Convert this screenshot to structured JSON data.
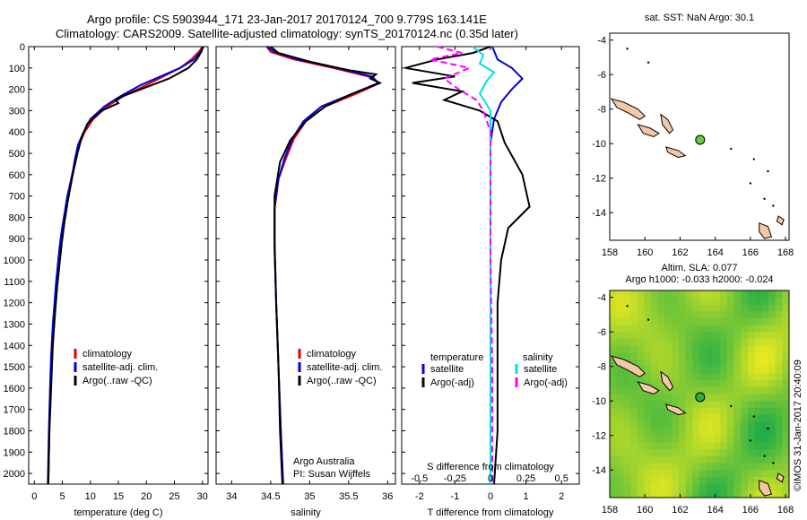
{
  "header": {
    "line1": "Argo profile: CS 5903944_171 23-Jan-2017 20170124_700 9.779S 163.141E",
    "line2": "Climatology: CARS2009. Satellite-adjusted climatology: synTS_20170124.nc (0.35d later)"
  },
  "credit": "©IMOS 31-Jan-2017 20:40:09",
  "depth_ticks": [
    "0",
    "100",
    "200",
    "300",
    "400",
    "500",
    "600",
    "700",
    "800",
    "900",
    "1000",
    "1100",
    "1200",
    "1300",
    "1400",
    "1500",
    "1600",
    "1700",
    "1800",
    "1900",
    "2000"
  ],
  "chart_data": [
    {
      "type": "line",
      "name": "temperature",
      "xlabel": "temperature (deg C)",
      "ylabel": "",
      "xlim": [
        -1,
        31
      ],
      "ylim": [
        2050,
        0
      ],
      "xticks": [
        "0",
        "5",
        "10",
        "15",
        "20",
        "25",
        "30"
      ],
      "legend": [
        "climatology",
        "satellite-adj. clim.",
        "Argo(..raw -QC)"
      ],
      "series": [
        {
          "name": "climatology",
          "color": "#e00000",
          "x": [
            30,
            29.5,
            28,
            26,
            23,
            20,
            16,
            13,
            10.5,
            9,
            8,
            7.5,
            7,
            6.5,
            6,
            5.5,
            5,
            4.6,
            4.3,
            4,
            3.7,
            3.4,
            3.1,
            2.9,
            2.7,
            2.5
          ],
          "y": [
            0,
            20,
            60,
            100,
            140,
            180,
            230,
            280,
            340,
            400,
            460,
            520,
            580,
            640,
            700,
            780,
            860,
            940,
            1020,
            1100,
            1200,
            1300,
            1450,
            1600,
            1800,
            2050
          ]
        },
        {
          "name": "satellite-adj. clim.",
          "color": "#0000e0",
          "x": [
            30.2,
            29.8,
            28.5,
            26,
            22.5,
            19,
            15.5,
            12.5,
            10,
            8.8,
            7.8,
            7.3,
            6.9,
            6.4,
            5.9,
            5.4,
            4.9,
            4.5,
            4.2,
            3.9,
            3.6,
            3.3,
            3.0,
            2.8,
            2.6,
            2.4
          ],
          "y": [
            0,
            20,
            60,
            100,
            140,
            180,
            230,
            280,
            340,
            400,
            460,
            520,
            580,
            640,
            700,
            780,
            860,
            940,
            1020,
            1100,
            1200,
            1300,
            1450,
            1600,
            1800,
            2050
          ]
        },
        {
          "name": "Argo(..raw -QC)",
          "color": "#000000",
          "x": [
            30,
            29.9,
            29,
            27.5,
            24,
            20,
            16,
            14.5,
            15,
            12,
            9.5,
            8.5,
            7.7,
            7,
            6.5,
            6,
            5.4,
            4.9,
            4.5,
            4.1,
            3.7,
            3.3,
            3,
            2.7,
            2.5
          ],
          "y": [
            0,
            20,
            60,
            100,
            150,
            190,
            230,
            250,
            265,
            300,
            360,
            420,
            500,
            580,
            650,
            720,
            820,
            920,
            1020,
            1120,
            1250,
            1400,
            1600,
            1800,
            2050
          ]
        }
      ]
    },
    {
      "type": "line",
      "name": "salinity",
      "xlabel": "salinity",
      "ylabel": "",
      "xlim": [
        33.8,
        36.1
      ],
      "ylim": [
        2050,
        0
      ],
      "xticks": [
        "34",
        "34.5",
        "35",
        "35.5",
        "36"
      ],
      "legend": [
        "climatology",
        "satellite-adj. clim.",
        "Argo(..raw -QC)"
      ],
      "annotation": [
        "Argo Australia",
        "PI: Susan Wijffels"
      ],
      "series": [
        {
          "name": "climatology",
          "color": "#e00000",
          "x": [
            34.45,
            34.5,
            34.8,
            35.3,
            35.75,
            35.9,
            35.6,
            35.2,
            34.95,
            34.8,
            34.7,
            34.6,
            34.55,
            34.55,
            34.57,
            34.6,
            34.63,
            34.66
          ],
          "y": [
            0,
            25,
            60,
            100,
            140,
            170,
            220,
            280,
            350,
            430,
            520,
            620,
            760,
            950,
            1200,
            1500,
            1800,
            2050
          ]
        },
        {
          "name": "satellite-adj. clim.",
          "color": "#0000e0",
          "x": [
            34.45,
            34.55,
            34.85,
            35.35,
            35.8,
            35.88,
            35.55,
            35.15,
            34.92,
            34.78,
            34.68,
            34.6,
            34.55,
            34.55,
            34.57,
            34.6,
            34.63,
            34.66
          ],
          "y": [
            0,
            25,
            60,
            100,
            140,
            170,
            220,
            280,
            350,
            430,
            520,
            620,
            760,
            950,
            1200,
            1500,
            1800,
            2050
          ]
        },
        {
          "name": "Argo(..raw -QC)",
          "color": "#000000",
          "x": [
            34.5,
            34.6,
            35,
            35.5,
            35.85,
            35.78,
            35.9,
            35.55,
            35.2,
            34.95,
            34.75,
            34.62,
            34.55,
            34.55,
            34.57,
            34.6,
            34.62,
            34.65
          ],
          "y": [
            0,
            30,
            70,
            110,
            130,
            150,
            170,
            220,
            280,
            350,
            440,
            540,
            700,
            900,
            1200,
            1500,
            1800,
            2050
          ]
        }
      ]
    },
    {
      "type": "line",
      "name": "difference",
      "xlabel": "T difference from climatology",
      "xlabel2": "S difference from climatology",
      "ylabel": "",
      "xlim": [
        -2.5,
        2.5
      ],
      "ylim": [
        2050,
        0
      ],
      "xticks": [
        "-2",
        "-1",
        "0",
        "1",
        "2"
      ],
      "xticks2": [
        "-0.5",
        "-0.25",
        "0",
        "0.25",
        "0.5"
      ],
      "legend_titles": [
        "temperature",
        "salinity"
      ],
      "legend": [
        "satellite",
        "Argo(-adj)",
        "satellite",
        "Argo(-adj)"
      ],
      "series": [
        {
          "name": "temperature satellite",
          "color": "#0000e0",
          "x": [
            0.05,
            0.2,
            0.6,
            0.9,
            0.6,
            0.3,
            0.1,
            0,
            0,
            0,
            0,
            0
          ],
          "y": [
            0,
            60,
            100,
            150,
            200,
            260,
            340,
            450,
            700,
            1000,
            1500,
            2050
          ]
        },
        {
          "name": "temperature Argo(-adj)",
          "color": "#000000",
          "x": [
            0,
            -0.5,
            -1.5,
            -2.4,
            -1,
            -2.2,
            -0.8,
            -1.3,
            -0.3,
            0.2,
            0.4,
            0.9,
            1.1,
            0.5,
            0.3,
            0.2,
            0.2,
            0.2,
            0.1
          ],
          "y": [
            0,
            30,
            60,
            100,
            140,
            170,
            210,
            250,
            300,
            350,
            450,
            600,
            750,
            850,
            1000,
            1200,
            1500,
            1800,
            2050
          ]
        },
        {
          "name": "salinity satellite",
          "color": "#00e0e0",
          "x": [
            -0.5,
            -0.2,
            -0.3,
            0.1,
            -0.1,
            -0.3,
            0,
            0,
            0,
            0,
            0,
            0
          ],
          "y": [
            0,
            40,
            80,
            120,
            160,
            220,
            300,
            450,
            700,
            1000,
            1500,
            2050
          ]
        },
        {
          "name": "salinity Argo(-adj)",
          "color": "#ff00ff",
          "x": [
            -1.5,
            -0.8,
            -1.7,
            -0.6,
            -1.3,
            -0.9,
            -0.4,
            -0.2,
            0,
            0,
            0,
            0.05,
            0.05
          ],
          "y": [
            0,
            30,
            60,
            100,
            150,
            200,
            250,
            300,
            400,
            600,
            1000,
            1500,
            2050
          ]
        }
      ]
    },
    {
      "type": "map",
      "name": "sst-map",
      "title": "sat. SST: NaN Argo: 30.1",
      "xlim": [
        158,
        168.2
      ],
      "ylim": [
        -15.6,
        -3.6
      ],
      "xticks": [
        "158",
        "160",
        "162",
        "164",
        "166",
        "168"
      ],
      "yticks": [
        "-4",
        "-6",
        "-8",
        "-10",
        "-12",
        "-14"
      ],
      "argo_position": {
        "lon": 163.141,
        "lat": -9.779
      },
      "marker_color": "#66cc44"
    },
    {
      "type": "map",
      "name": "sla-map",
      "title": "Altim. SLA: 0.077",
      "subtitle": "Argo h1000: -0.033 h2000: -0.024",
      "xlim": [
        158,
        168.2
      ],
      "ylim": [
        -15.6,
        -3.6
      ],
      "xticks": [
        "158",
        "160",
        "162",
        "164",
        "166",
        "168"
      ],
      "yticks": [
        "-4",
        "-6",
        "-8",
        "-10",
        "-12",
        "-14"
      ],
      "argo_position": {
        "lon": 163.141,
        "lat": -9.779
      },
      "marker_color": "#33aa44"
    }
  ]
}
